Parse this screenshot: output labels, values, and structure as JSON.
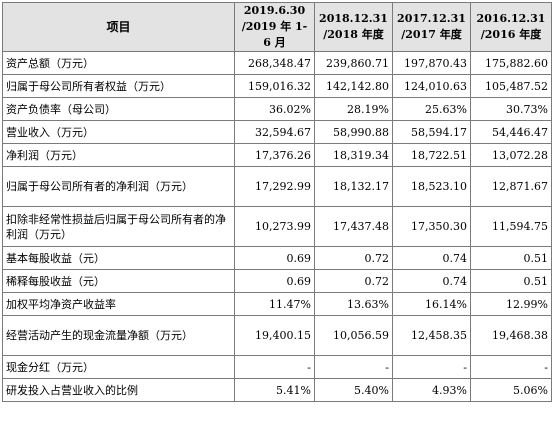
{
  "header": {
    "item": "项目",
    "periods": [
      {
        "line1": "2019.6.30",
        "line2": "/2019 年 1-6 月"
      },
      {
        "line1": "2018.12.31",
        "line2": "/2018 年度"
      },
      {
        "line1": "2017.12.31",
        "line2": "/2017 年度"
      },
      {
        "line1": "2016.12.31",
        "line2": "/2016 年度"
      }
    ]
  },
  "rows": [
    {
      "label": "资产总额（万元）",
      "values": [
        "268,348.47",
        "239,860.71",
        "197,870.43",
        "175,882.60"
      ]
    },
    {
      "label": "归属于母公司所有者权益（万元）",
      "values": [
        "159,016.32",
        "142,142.80",
        "124,010.63",
        "105,487.52"
      ]
    },
    {
      "label": "资产负债率（母公司）",
      "values": [
        "36.02%",
        "28.19%",
        "25.63%",
        "30.73%"
      ]
    },
    {
      "label": "营业收入（万元）",
      "values": [
        "32,594.67",
        "58,990.88",
        "58,594.17",
        "54,446.47"
      ]
    },
    {
      "label": "净利润（万元）",
      "values": [
        "17,376.26",
        "18,319.34",
        "18,722.51",
        "13,072.28"
      ]
    },
    {
      "label": "归属于母公司所有者的净利润（万元）",
      "values": [
        "17,292.99",
        "18,132.17",
        "18,523.10",
        "12,871.67"
      ]
    },
    {
      "label": "扣除非经常性损益后归属于母公司所有者的净利润（万元）",
      "values": [
        "10,273.99",
        "17,437.48",
        "17,350.30",
        "11,594.75"
      ]
    },
    {
      "label": "基本每股收益（元）",
      "values": [
        "0.69",
        "0.72",
        "0.74",
        "0.51"
      ]
    },
    {
      "label": "稀释每股收益（元）",
      "values": [
        "0.69",
        "0.72",
        "0.74",
        "0.51"
      ]
    },
    {
      "label": "加权平均净资产收益率",
      "values": [
        "11.47%",
        "13.63%",
        "16.14%",
        "12.99%"
      ]
    },
    {
      "label": "经营活动产生的现金流量净额（万元）",
      "values": [
        "19,400.15",
        "10,056.59",
        "12,458.35",
        "19,468.38"
      ]
    },
    {
      "label": "现金分红（万元）",
      "values": [
        "-",
        "-",
        "-",
        "-"
      ]
    },
    {
      "label": "研发投入占营业收入的比例",
      "values": [
        "5.41%",
        "5.40%",
        "4.93%",
        "5.06%"
      ]
    }
  ]
}
